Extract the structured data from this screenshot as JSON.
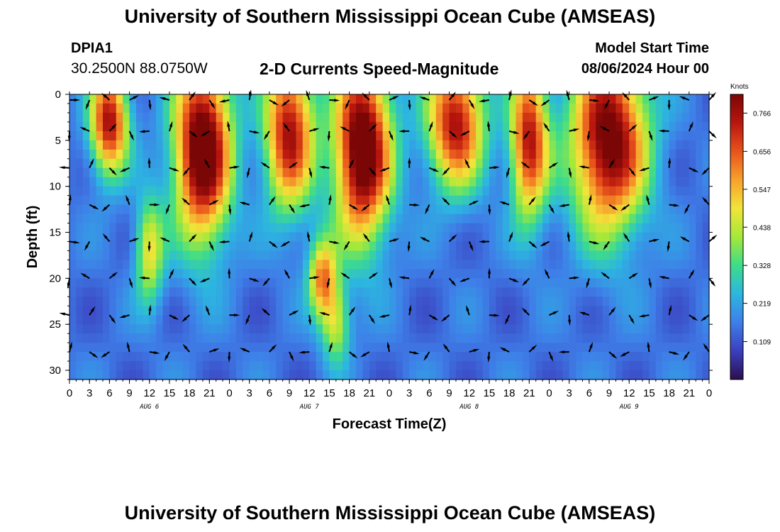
{
  "header": {
    "title": "University of Southern Mississippi Ocean Cube (AMSEAS)",
    "station": "DPIA1",
    "coords": "30.2500N  88.0750W",
    "subtitle": "2-D Currents Speed-Magnitude",
    "start_label": "Model Start Time",
    "start_value": "08/06/2024 Hour 00"
  },
  "footer": {
    "title": "University of Southern Mississippi Ocean Cube (AMSEAS)"
  },
  "chart_data": {
    "type": "heatmap",
    "title": "2-D Currents Speed-Magnitude",
    "xlabel": "Forecast Time(Z)",
    "ylabel": "Depth (ft)",
    "x_range_hours": [
      0,
      96
    ],
    "ylim": [
      0,
      31
    ],
    "x_tick_labels": [
      "0",
      "3",
      "6",
      "9",
      "12",
      "15",
      "18",
      "21",
      "0",
      "3",
      "6",
      "9",
      "12",
      "15",
      "18",
      "21",
      "0",
      "3",
      "6",
      "9",
      "12",
      "15",
      "18",
      "21",
      "0",
      "3",
      "6",
      "9",
      "12",
      "15",
      "18",
      "21",
      "0"
    ],
    "y_ticks": [
      0,
      5,
      10,
      15,
      20,
      25,
      30
    ],
    "day_labels": [
      {
        "label": "AUG 6",
        "hour": 12
      },
      {
        "label": "AUG 7",
        "hour": 36
      },
      {
        "label": "AUG 8",
        "hour": 60
      },
      {
        "label": "AUG 9",
        "hour": 84
      }
    ],
    "colorbar": {
      "unit": "Knots",
      "min": 0.0,
      "max": 0.82,
      "ticks": [
        "0.766",
        "0.656",
        "0.547",
        "0.438",
        "0.328",
        "0.219",
        "0.109"
      ],
      "tick_values": [
        0.766,
        0.656,
        0.547,
        0.438,
        0.328,
        0.219,
        0.109
      ],
      "colors": [
        "#2b0f4c",
        "#3b3fbf",
        "#3e7fe8",
        "#2cb6e0",
        "#3ddc8a",
        "#a5e83a",
        "#f2e43a",
        "#f7a12c",
        "#e8531c",
        "#b8160e",
        "#7a0606"
      ]
    },
    "speed_blobs": [
      {
        "t": 6,
        "d": 3,
        "st": 2.0,
        "sd": 4.0,
        "a": 0.62
      },
      {
        "t": 20,
        "d": 6,
        "st": 3.0,
        "sd": 7.0,
        "a": 0.78
      },
      {
        "t": 33,
        "d": 4,
        "st": 2.6,
        "sd": 6.0,
        "a": 0.62
      },
      {
        "t": 44,
        "d": 6,
        "st": 3.0,
        "sd": 7.0,
        "a": 0.78
      },
      {
        "t": 58,
        "d": 3,
        "st": 3.0,
        "sd": 5.0,
        "a": 0.62
      },
      {
        "t": 69,
        "d": 5,
        "st": 2.0,
        "sd": 6.0,
        "a": 0.6
      },
      {
        "t": 81,
        "d": 5,
        "st": 4.0,
        "sd": 7.0,
        "a": 0.72
      },
      {
        "t": 12,
        "d": 17,
        "st": 1.5,
        "sd": 4.0,
        "a": 0.35
      },
      {
        "t": 38,
        "d": 20,
        "st": 1.5,
        "sd": 3.0,
        "a": 0.45
      },
      {
        "t": 40,
        "d": 25,
        "st": 1.5,
        "sd": 3.0,
        "a": 0.3
      }
    ],
    "vector_depths": [
      0,
      4,
      8,
      12,
      16,
      20,
      24,
      28
    ]
  }
}
